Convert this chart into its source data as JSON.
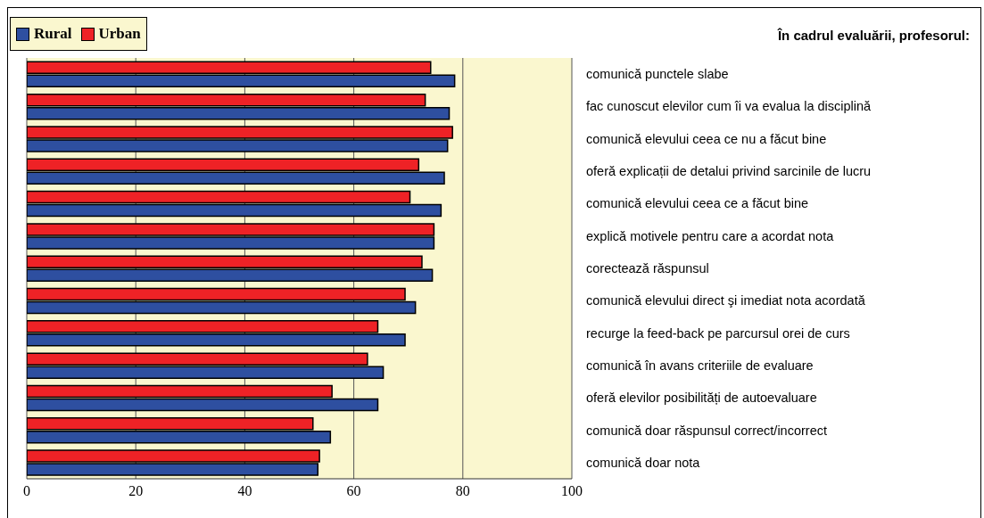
{
  "chart_data": {
    "type": "bar",
    "orientation": "horizontal",
    "title": "În cadrul evaluării, profesorul:",
    "categories": [
      "comunică punctele slabe",
      "fac cunoscut elevilor cum îi va evalua la disciplină",
      "comunică elevului ceea ce nu a făcut bine",
      "oferă explicații de detalui privind sarcinile de lucru",
      "comunică elevului ceea ce a făcut bine",
      "explică motivele pentru care a acordat nota",
      "corectează răspunsul",
      "comunică elevului direct şi imediat nota acordată",
      "recurge la feed-back pe parcursul orei de curs",
      "comunică în avans criteriile de evaluare",
      "oferă elevilor posibilități de autoevaluare",
      "comunică doar răspunsul correct/incorrect",
      "comunică doar nota"
    ],
    "series": [
      {
        "name": "Rural",
        "color": "#2e4fa0",
        "values": [
          78.5,
          77.5,
          77.2,
          76.6,
          76.0,
          74.7,
          74.4,
          71.3,
          69.4,
          65.4,
          64.4,
          55.7,
          53.4
        ]
      },
      {
        "name": "Urban",
        "color": "#ee2226",
        "values": [
          74.1,
          73.1,
          78.1,
          71.9,
          70.3,
          74.7,
          72.5,
          69.4,
          64.4,
          62.5,
          56.0,
          52.5,
          53.7
        ]
      }
    ],
    "xlim": [
      0,
      100
    ],
    "xticks": [
      0,
      20,
      40,
      60,
      80,
      100
    ],
    "grid": "x",
    "legend": "top left"
  }
}
